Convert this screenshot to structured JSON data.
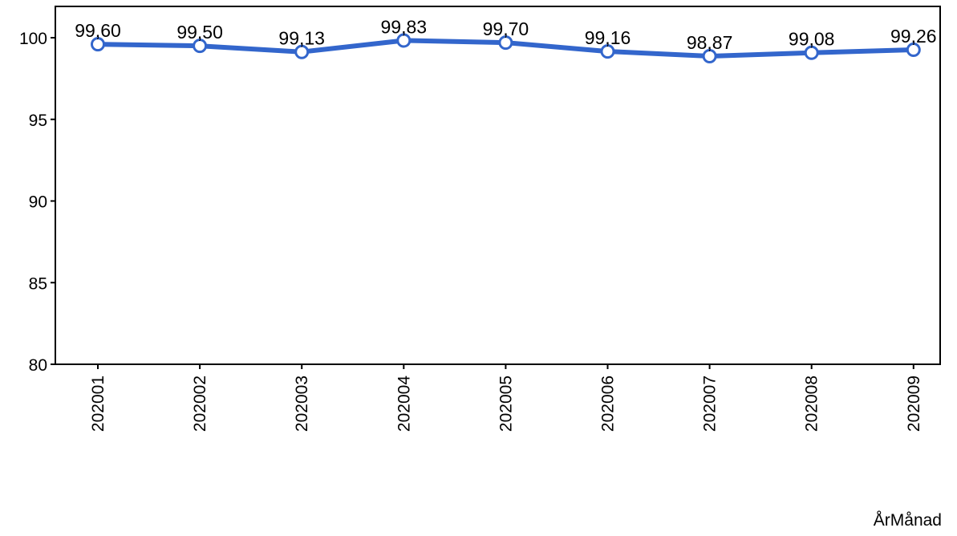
{
  "chart_data": {
    "type": "line",
    "title": "",
    "xlabel": "ÅrMånad",
    "ylabel": "",
    "categories": [
      "202001",
      "202002",
      "202003",
      "202004",
      "202005",
      "202006",
      "202007",
      "202008",
      "202009"
    ],
    "series": [
      {
        "values": [
          99.6,
          99.5,
          99.13,
          99.83,
          99.7,
          99.16,
          98.87,
          99.08,
          99.26
        ],
        "labels": [
          "99,60",
          "99,50",
          "99,13",
          "99,83",
          "99,70",
          "99,16",
          "98,87",
          "99,08",
          "99,26"
        ],
        "color": "#3366cc"
      }
    ],
    "ylim": [
      80,
      100
    ],
    "yticks": [
      80,
      85,
      90,
      95,
      100
    ],
    "grid": false,
    "legend": "none"
  }
}
